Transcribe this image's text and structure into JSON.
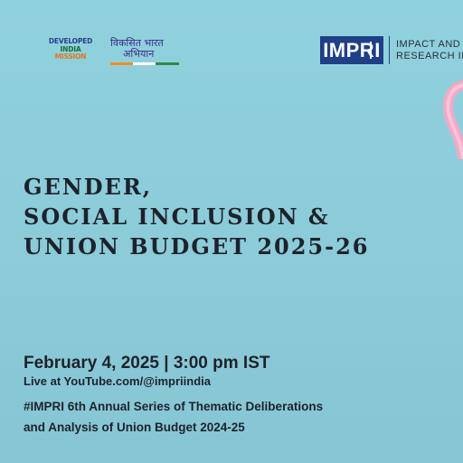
{
  "logos": {
    "developed_india": [
      "DEVELOPED",
      "INDIA",
      "MISSION"
    ],
    "viksit_bharat": [
      "विकसित भारत",
      "अभियान"
    ],
    "impri_mark": "IMPRI",
    "impri_name": [
      "IMPACT AND",
      "RESEARCH IN"
    ]
  },
  "title": {
    "line1": "GENDER,",
    "line2": "SOCIAL INCLUSION &",
    "line3": "UNION BUDGET 2025-26"
  },
  "event": {
    "date_time": "February 4, 2025 | 3:00 pm IST",
    "live": "Live at YouTube.com/@impriindia",
    "series_line1": "#IMPRI 6th Annual Series of Thematic Deliberations",
    "series_line2": "and Analysis of Union Budget 2024-25"
  },
  "colors": {
    "background": "#8fcfdc",
    "text": "#1e222c",
    "impri_blue": "#1f3f86",
    "ribbon_pink": "#f0a8c8"
  },
  "icons": {
    "ribbon": "pink-awareness-ribbon"
  }
}
